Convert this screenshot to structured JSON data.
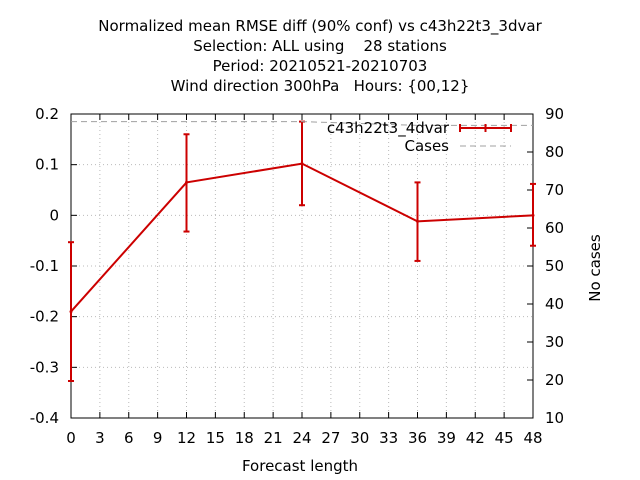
{
  "chart_data": {
    "type": "line",
    "title_lines": [
      "Normalized mean RMSE diff (90% conf) vs c43h22t3_3dvar",
      "Selection: ALL using    28 stations",
      "Period: 20210521-20210703",
      "Wind direction 300hPa   Hours: {00,12}"
    ],
    "xlabel": "Forecast length",
    "ylabel": "",
    "y2label": "No cases",
    "x_ticks": [
      0,
      3,
      6,
      9,
      12,
      15,
      18,
      21,
      24,
      27,
      30,
      33,
      36,
      39,
      42,
      45,
      48
    ],
    "y_ticks": [
      0.2,
      0.1,
      0,
      -0.1,
      -0.2,
      -0.3,
      -0.4
    ],
    "y_tick_labels": [
      "0.2",
      "0.1",
      "0",
      "-0.1",
      "-0.2",
      "-0.3",
      "-0.4"
    ],
    "y2_ticks": [
      90,
      80,
      70,
      60,
      50,
      40,
      30,
      20,
      10
    ],
    "xlim": [
      0,
      48
    ],
    "ylim": [
      -0.4,
      0.2
    ],
    "y2lim": [
      10,
      90
    ],
    "grid": true,
    "legend_position": "top-right",
    "series": [
      {
        "name": "c43h22t3_4dvar",
        "color": "#cc0000",
        "x": [
          0,
          12,
          24,
          36,
          48
        ],
        "y": [
          -0.19,
          0.065,
          0.102,
          -0.012,
          0.0
        ],
        "err_low": [
          -0.327,
          -0.032,
          0.02,
          -0.09,
          -0.06
        ],
        "err_high": [
          -0.053,
          0.16,
          0.185,
          0.065,
          0.062
        ]
      },
      {
        "name": "Cases",
        "color": "#a0a0a0",
        "axis": "y2",
        "x": [
          0,
          12,
          24,
          36,
          48
        ],
        "y": [
          88,
          88,
          88,
          87,
          87
        ]
      }
    ]
  }
}
